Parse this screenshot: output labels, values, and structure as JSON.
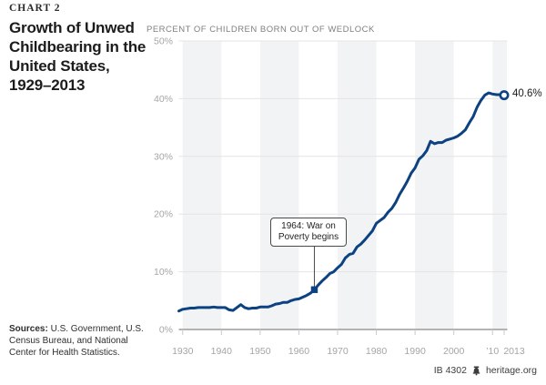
{
  "page": {
    "chart_label": "CHART 2",
    "title": "Growth of Unwed\nChildbearing in the\nUnited States,\n1929–2013",
    "sources_label": "Sources:",
    "sources_text": " U.S. Government, U.S. Census Bureau, and National Center for Health Statistics.",
    "footer": {
      "doc_id": "IB 4302",
      "site": "heritage.org"
    }
  },
  "chart_data": {
    "type": "line",
    "title": "PERCENT OF CHILDREN BORN OUT OF WEDLOCK",
    "xlabel": "",
    "ylabel": "Percent of children born out of wedlock",
    "xlim": [
      1929,
      2013
    ],
    "ylim": [
      0,
      50
    ],
    "grid": "horizontal",
    "legend": "none",
    "line_color": "#0C4281",
    "band_color": "#f2f3f4",
    "x": [
      1929,
      1930,
      1931,
      1932,
      1933,
      1934,
      1935,
      1936,
      1937,
      1938,
      1939,
      1940,
      1941,
      1942,
      1943,
      1944,
      1945,
      1946,
      1947,
      1948,
      1949,
      1950,
      1951,
      1952,
      1953,
      1954,
      1955,
      1956,
      1957,
      1958,
      1959,
      1960,
      1961,
      1962,
      1963,
      1964,
      1965,
      1966,
      1967,
      1968,
      1969,
      1970,
      1971,
      1972,
      1973,
      1974,
      1975,
      1976,
      1977,
      1978,
      1979,
      1980,
      1981,
      1982,
      1983,
      1984,
      1985,
      1986,
      1987,
      1988,
      1989,
      1990,
      1991,
      1992,
      1993,
      1994,
      1995,
      1996,
      1997,
      1998,
      1999,
      2000,
      2001,
      2002,
      2003,
      2004,
      2005,
      2006,
      2007,
      2008,
      2009,
      2010,
      2011,
      2012,
      2013
    ],
    "series": [
      {
        "name": "Percent of children born out of wedlock",
        "values": [
          3.2,
          3.5,
          3.6,
          3.7,
          3.7,
          3.8,
          3.8,
          3.8,
          3.8,
          3.9,
          3.8,
          3.8,
          3.8,
          3.4,
          3.3,
          3.8,
          4.3,
          3.8,
          3.6,
          3.7,
          3.7,
          3.9,
          3.9,
          3.9,
          4.1,
          4.4,
          4.5,
          4.7,
          4.7,
          5.0,
          5.2,
          5.3,
          5.6,
          5.9,
          6.3,
          6.9,
          7.7,
          8.4,
          9.0,
          9.7,
          10.0,
          10.7,
          11.3,
          12.4,
          13.0,
          13.2,
          14.3,
          14.8,
          15.5,
          16.3,
          17.1,
          18.4,
          18.9,
          19.4,
          20.3,
          21.0,
          22.0,
          23.4,
          24.5,
          25.7,
          27.1,
          28.0,
          29.5,
          30.1,
          31.0,
          32.6,
          32.2,
          32.4,
          32.4,
          32.8,
          33.0,
          33.2,
          33.5,
          34.0,
          34.6,
          35.8,
          36.9,
          38.5,
          39.7,
          40.6,
          41.0,
          40.8,
          40.7,
          40.7,
          40.6
        ]
      }
    ],
    "yticks": [
      {
        "value": 0,
        "label": "0%"
      },
      {
        "value": 10,
        "label": "10%"
      },
      {
        "value": 20,
        "label": "20%"
      },
      {
        "value": 30,
        "label": "30%"
      },
      {
        "value": 40,
        "label": "40%"
      },
      {
        "value": 50,
        "label": "50%"
      }
    ],
    "xticks": [
      {
        "year": 1930,
        "label": "1930",
        "label_dx": 0
      },
      {
        "year": 1940,
        "label": "1940",
        "label_dx": 0
      },
      {
        "year": 1950,
        "label": "1950",
        "label_dx": 0
      },
      {
        "year": 1960,
        "label": "1960",
        "label_dx": 0
      },
      {
        "year": 1970,
        "label": "1970",
        "label_dx": 0
      },
      {
        "year": 1980,
        "label": "1980",
        "label_dx": 0
      },
      {
        "year": 1990,
        "label": "1990",
        "label_dx": 0
      },
      {
        "year": 2000,
        "label": "2000",
        "label_dx": 0
      },
      {
        "year": 2010,
        "label": "’10",
        "label_dx": 0
      },
      {
        "year": 2013,
        "label": "2013",
        "label_dx": 11
      }
    ],
    "decade_bands": [
      [
        1930,
        1940
      ],
      [
        1950,
        1960
      ],
      [
        1970,
        1980
      ],
      [
        1990,
        2000
      ],
      [
        2010,
        2013.7
      ]
    ],
    "annotation": {
      "year": 1964,
      "value": 6.9,
      "text": "1964: War on\nPoverty begins"
    },
    "end_label": {
      "text": "40.6%",
      "year": 2013,
      "value": 40.6
    }
  }
}
